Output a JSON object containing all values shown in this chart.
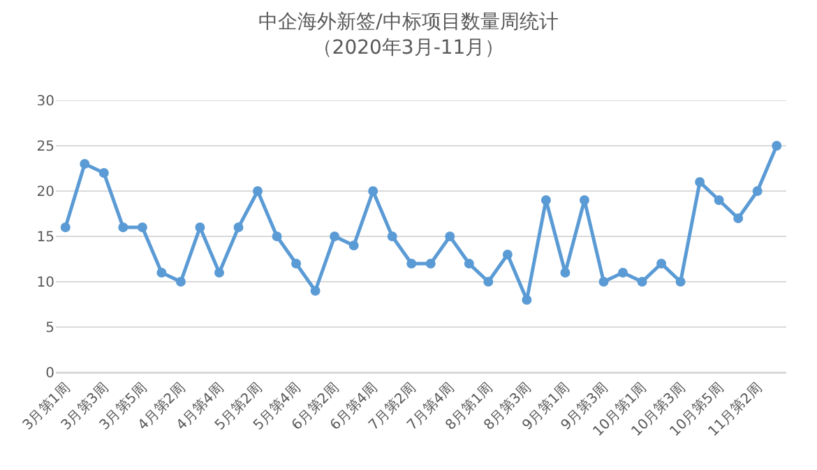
{
  "chart_data": {
    "type": "line",
    "title": "中企海外新签/中标项目数量周统计",
    "subtitle": "（2020年3月-11月）",
    "categories": [
      "3月第1周",
      null,
      "3月第3周",
      null,
      "3月第5周",
      null,
      "4月第2周",
      null,
      "4月第4周",
      null,
      "5月第2周",
      null,
      "5月第4周",
      null,
      "6月第2周",
      null,
      "6月第4周",
      null,
      "7月第2周",
      null,
      "7月第4周",
      null,
      "8月第1周",
      null,
      "8月第3周",
      null,
      "9月第1周",
      null,
      "9月第3周",
      null,
      "10月第1周",
      null,
      "10月第3周",
      null,
      "10月第5周",
      null,
      "11月第2周",
      null
    ],
    "values": [
      16,
      23,
      22,
      16,
      16,
      11,
      10,
      16,
      11,
      16,
      20,
      15,
      12,
      9,
      15,
      14,
      20,
      15,
      12,
      12,
      15,
      12,
      10,
      13,
      8,
      19,
      11,
      19,
      10,
      11,
      10,
      12,
      10,
      21,
      19,
      17,
      20,
      25
    ],
    "color": "#5b9bd5",
    "marker": "circle",
    "line_style": "solid",
    "ylim": [
      0,
      30
    ],
    "yticks": [
      0,
      5,
      10,
      15,
      20,
      25,
      30
    ],
    "grid": "y",
    "legend": false
  }
}
